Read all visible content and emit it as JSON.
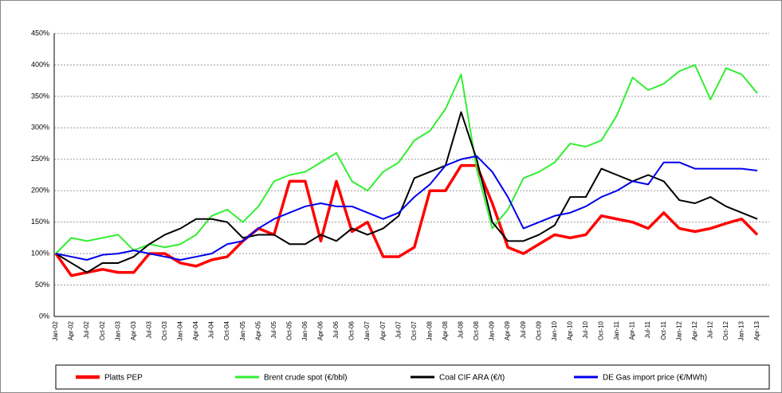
{
  "chart_data": {
    "type": "line",
    "categories": [
      "Jan-02",
      "Apr-02",
      "Jul-02",
      "Oct-02",
      "Jan-03",
      "Apr-03",
      "Jul-03",
      "Oct-03",
      "Jan-04",
      "Apr-04",
      "Jul-04",
      "Oct-04",
      "Jan-05",
      "Apr-05",
      "Jul-05",
      "Oct-05",
      "Jan-06",
      "Apr-06",
      "Jul-06",
      "Oct-06",
      "Jan-07",
      "Apr-07",
      "Jul-07",
      "Oct-07",
      "Jan-08",
      "Apr-08",
      "Jul-08",
      "Oct-08",
      "Jan-09",
      "Apr-09",
      "Jul-09",
      "Oct-09",
      "Jan-10",
      "Apr-10",
      "Jul-10",
      "Oct-10",
      "Jan-11",
      "Apr-11",
      "Jul-11",
      "Oct-11",
      "Jan-12",
      "Apr-12",
      "Jul-12",
      "Oct-12",
      "Jan-13",
      "Apr-13"
    ],
    "series": [
      {
        "name": "Platts PEP",
        "color": "#ff0000",
        "width": 3.5,
        "values": [
          100,
          65,
          70,
          75,
          70,
          70,
          100,
          100,
          85,
          80,
          90,
          95,
          120,
          140,
          130,
          215,
          215,
          120,
          215,
          135,
          150,
          95,
          95,
          110,
          200,
          200,
          240,
          240,
          180,
          110,
          100,
          115,
          130,
          125,
          130,
          160,
          155,
          150,
          140,
          165,
          140,
          135,
          140,
          148,
          155,
          130
        ]
      },
      {
        "name": "Brent crude spot (€/bbl)",
        "color": "#33ee33",
        "width": 2,
        "values": [
          100,
          125,
          120,
          125,
          130,
          105,
          115,
          110,
          115,
          130,
          160,
          170,
          150,
          175,
          215,
          225,
          230,
          245,
          260,
          215,
          200,
          230,
          245,
          280,
          295,
          330,
          385,
          235,
          140,
          170,
          220,
          230,
          245,
          275,
          270,
          280,
          320,
          380,
          360,
          370,
          390,
          400,
          345,
          395,
          385,
          355
        ]
      },
      {
        "name": "Coal CIF ARA (€/t)",
        "color": "#000000",
        "width": 2,
        "values": [
          100,
          85,
          70,
          85,
          85,
          95,
          115,
          130,
          140,
          155,
          155,
          150,
          125,
          130,
          130,
          115,
          115,
          130,
          120,
          140,
          130,
          140,
          160,
          220,
          230,
          240,
          325,
          250,
          150,
          120,
          120,
          130,
          145,
          190,
          190,
          235,
          225,
          215,
          225,
          215,
          185,
          180,
          190,
          175,
          165,
          155
        ]
      },
      {
        "name": "DE Gas import price (€/MWh)",
        "color": "#0000ee",
        "width": 2,
        "values": [
          100,
          95,
          90,
          98,
          100,
          105,
          100,
          95,
          90,
          95,
          100,
          115,
          120,
          140,
          155,
          165,
          175,
          180,
          175,
          175,
          165,
          155,
          165,
          190,
          210,
          240,
          250,
          255,
          230,
          190,
          140,
          150,
          160,
          165,
          175,
          190,
          200,
          215,
          210,
          245,
          245,
          235,
          235,
          235,
          235,
          232
        ]
      }
    ],
    "ylim": [
      0,
      450
    ],
    "yticks": [
      {
        "value": 0,
        "label": "0%"
      },
      {
        "value": 50,
        "label": "50%"
      },
      {
        "value": 100,
        "label": "100%"
      },
      {
        "value": 150,
        "label": "150%"
      },
      {
        "value": 200,
        "label": "200%"
      },
      {
        "value": 250,
        "label": "250%"
      },
      {
        "value": 300,
        "label": "300%"
      },
      {
        "value": 350,
        "label": "350%"
      },
      {
        "value": 400,
        "label": "400%"
      },
      {
        "value": 450,
        "label": "450%"
      }
    ],
    "grid": true
  }
}
